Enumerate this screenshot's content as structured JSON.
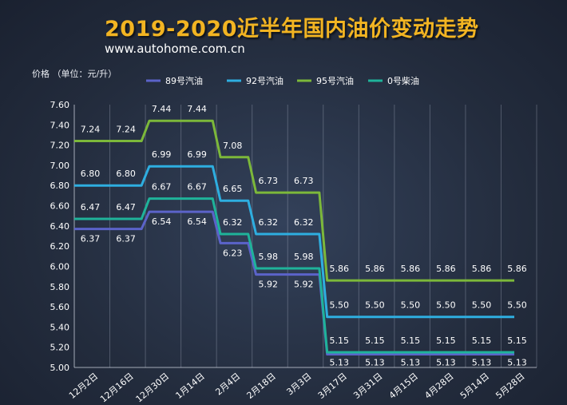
{
  "chart_data": {
    "type": "line",
    "title": "2019-2020近半年国内油价变动走势",
    "subtitle": "www.autohome.com.cn",
    "ylabel": "价格 （单位：元/升）",
    "xlabel": "",
    "ylim": [
      5.0,
      7.6
    ],
    "yticks": [
      "5.00",
      "5.20",
      "5.40",
      "5.60",
      "5.80",
      "6.00",
      "6.20",
      "6.40",
      "6.60",
      "6.80",
      "7.00",
      "7.20",
      "7.40",
      "7.60"
    ],
    "grid": "vertical",
    "legend": "top",
    "categories": [
      "12月2日",
      "12月16日",
      "12月30日",
      "1月14日",
      "2月4日",
      "2月18日",
      "3月3日",
      "3月17日",
      "3月31日",
      "4月15日",
      "4月28日",
      "5月14日",
      "5月28日"
    ],
    "series": [
      {
        "name": "89号汽油",
        "color": "#5b63c9",
        "values": [
          6.37,
          6.37,
          6.54,
          6.54,
          6.23,
          5.92,
          5.92,
          5.13,
          5.13,
          5.13,
          5.13,
          5.13,
          5.13
        ],
        "labels": [
          "6.37",
          "6.37",
          "6.54",
          "6.54",
          "6.23",
          "5.92",
          "5.92",
          "5.13",
          "5.13",
          "5.13",
          "5.13",
          "5.13",
          "5.13"
        ]
      },
      {
        "name": "92号汽油",
        "color": "#2eaee0",
        "values": [
          6.8,
          6.8,
          6.99,
          6.99,
          6.65,
          6.32,
          6.32,
          5.5,
          5.5,
          5.5,
          5.5,
          5.5,
          5.5
        ],
        "labels": [
          "6.80",
          "6.80",
          "6.99",
          "6.99",
          "6.65",
          "6.32",
          "6.32",
          "5.50",
          "5.50",
          "5.50",
          "5.50",
          "5.50",
          "5.50"
        ]
      },
      {
        "name": "95号汽油",
        "color": "#7cb83a",
        "values": [
          7.24,
          7.24,
          7.44,
          7.44,
          7.08,
          6.73,
          6.73,
          5.86,
          5.86,
          5.86,
          5.86,
          5.86,
          5.86
        ],
        "labels": [
          "7.24",
          "7.24",
          "7.44",
          "7.44",
          "7.08",
          "6.73",
          "6.73",
          "5.86",
          "5.86",
          "5.86",
          "5.86",
          "5.86",
          "5.86"
        ]
      },
      {
        "name": "0号柴油",
        "color": "#1fb39a",
        "values": [
          6.47,
          6.47,
          6.67,
          6.67,
          6.32,
          5.98,
          5.98,
          5.15,
          5.15,
          5.15,
          5.15,
          5.15,
          5.15
        ],
        "labels": [
          "6.47",
          "6.47",
          "6.67",
          "6.67",
          "6.32",
          "5.98",
          "5.98",
          "5.15",
          "5.15",
          "5.15",
          "5.15",
          "5.15",
          "5.15"
        ]
      }
    ]
  }
}
